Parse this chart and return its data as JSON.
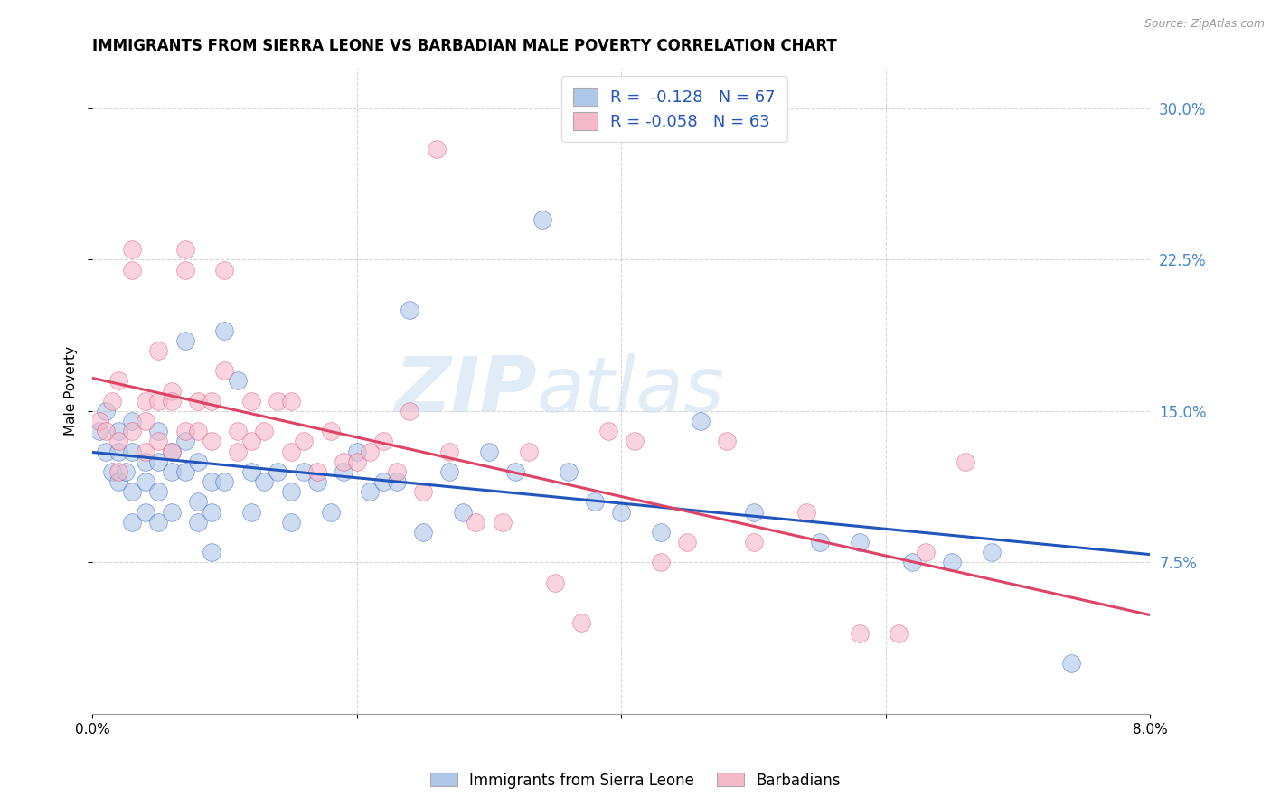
{
  "title": "IMMIGRANTS FROM SIERRA LEONE VS BARBADIAN MALE POVERTY CORRELATION CHART",
  "source": "Source: ZipAtlas.com",
  "ylabel": "Male Poverty",
  "legend_label1": "Immigrants from Sierra Leone",
  "legend_label2": "Barbadians",
  "R1": -0.128,
  "N1": 67,
  "R2": -0.058,
  "N2": 63,
  "blue_color": "#aec6e8",
  "pink_color": "#f5b8c8",
  "blue_line_color": "#2255bb",
  "pink_line_color": "#dd4466",
  "right_axis_color": "#4488cc",
  "ytick_values_right": [
    0.075,
    0.15,
    0.225,
    0.3
  ],
  "watermark_zip": "ZIP",
  "watermark_atlas": "atlas",
  "blue_x": [
    0.0005,
    0.001,
    0.001,
    0.0015,
    0.002,
    0.002,
    0.002,
    0.0025,
    0.003,
    0.003,
    0.003,
    0.003,
    0.004,
    0.004,
    0.004,
    0.005,
    0.005,
    0.005,
    0.005,
    0.006,
    0.006,
    0.006,
    0.007,
    0.007,
    0.007,
    0.008,
    0.008,
    0.008,
    0.009,
    0.009,
    0.009,
    0.01,
    0.01,
    0.011,
    0.012,
    0.012,
    0.013,
    0.014,
    0.015,
    0.015,
    0.016,
    0.017,
    0.018,
    0.019,
    0.02,
    0.021,
    0.022,
    0.023,
    0.024,
    0.025,
    0.027,
    0.028,
    0.03,
    0.032,
    0.034,
    0.036,
    0.038,
    0.04,
    0.043,
    0.046,
    0.05,
    0.055,
    0.058,
    0.062,
    0.065,
    0.068,
    0.074
  ],
  "blue_y": [
    0.14,
    0.15,
    0.13,
    0.12,
    0.14,
    0.13,
    0.115,
    0.12,
    0.145,
    0.13,
    0.11,
    0.095,
    0.115,
    0.125,
    0.1,
    0.14,
    0.125,
    0.11,
    0.095,
    0.13,
    0.12,
    0.1,
    0.185,
    0.135,
    0.12,
    0.105,
    0.125,
    0.095,
    0.115,
    0.1,
    0.08,
    0.19,
    0.115,
    0.165,
    0.12,
    0.1,
    0.115,
    0.12,
    0.11,
    0.095,
    0.12,
    0.115,
    0.1,
    0.12,
    0.13,
    0.11,
    0.115,
    0.115,
    0.2,
    0.09,
    0.12,
    0.1,
    0.13,
    0.12,
    0.245,
    0.12,
    0.105,
    0.1,
    0.09,
    0.145,
    0.1,
    0.085,
    0.085,
    0.075,
    0.075,
    0.08,
    0.025
  ],
  "pink_x": [
    0.0005,
    0.001,
    0.0015,
    0.002,
    0.002,
    0.002,
    0.003,
    0.003,
    0.003,
    0.004,
    0.004,
    0.004,
    0.005,
    0.005,
    0.005,
    0.006,
    0.006,
    0.006,
    0.007,
    0.007,
    0.007,
    0.008,
    0.008,
    0.009,
    0.009,
    0.01,
    0.01,
    0.011,
    0.011,
    0.012,
    0.012,
    0.013,
    0.014,
    0.015,
    0.015,
    0.016,
    0.017,
    0.018,
    0.019,
    0.02,
    0.021,
    0.022,
    0.023,
    0.024,
    0.025,
    0.026,
    0.027,
    0.029,
    0.031,
    0.033,
    0.035,
    0.037,
    0.039,
    0.041,
    0.043,
    0.045,
    0.048,
    0.05,
    0.054,
    0.058,
    0.061,
    0.063,
    0.066
  ],
  "pink_y": [
    0.145,
    0.14,
    0.155,
    0.165,
    0.135,
    0.12,
    0.22,
    0.23,
    0.14,
    0.155,
    0.145,
    0.13,
    0.18,
    0.155,
    0.135,
    0.16,
    0.155,
    0.13,
    0.22,
    0.23,
    0.14,
    0.155,
    0.14,
    0.135,
    0.155,
    0.17,
    0.22,
    0.13,
    0.14,
    0.155,
    0.135,
    0.14,
    0.155,
    0.155,
    0.13,
    0.135,
    0.12,
    0.14,
    0.125,
    0.125,
    0.13,
    0.135,
    0.12,
    0.15,
    0.11,
    0.28,
    0.13,
    0.095,
    0.095,
    0.13,
    0.065,
    0.045,
    0.14,
    0.135,
    0.075,
    0.085,
    0.135,
    0.085,
    0.1,
    0.04,
    0.04,
    0.08,
    0.125
  ]
}
